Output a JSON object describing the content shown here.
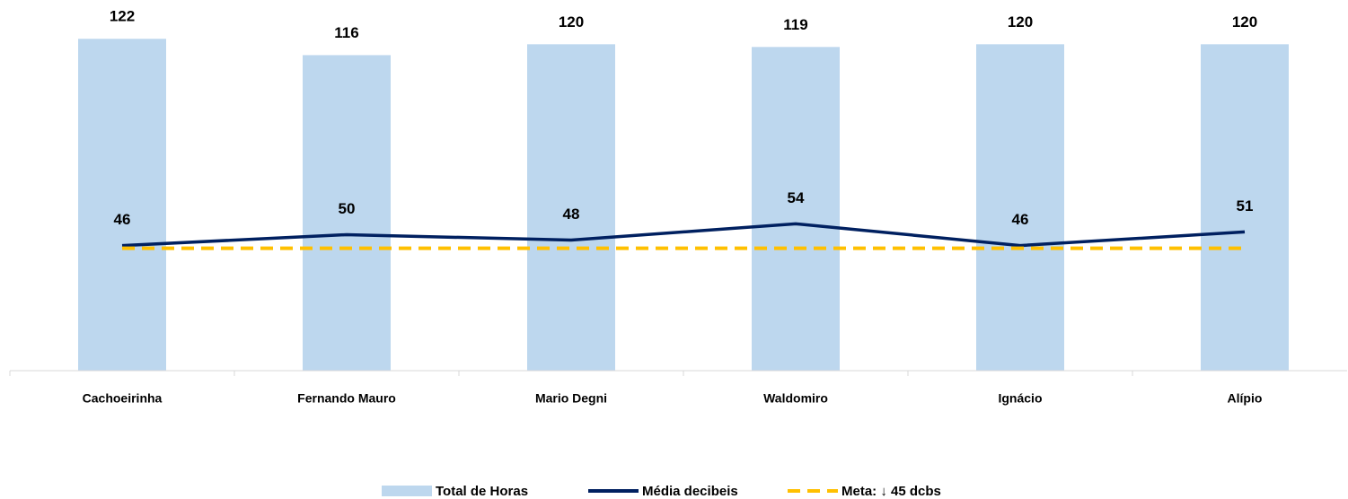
{
  "chart_data": {
    "type": "bar",
    "categories": [
      "Cachoeirinha",
      "Fernando Mauro",
      "Mario Degni",
      "Waldomiro",
      "Ignácio",
      "Alípio"
    ],
    "ylim": [
      0,
      130
    ],
    "series": [
      {
        "name": "Total de Horas",
        "type": "bar",
        "color": "#bdd7ee",
        "values": [
          122,
          116,
          120,
          119,
          120,
          120
        ],
        "labels": true
      },
      {
        "name": "Média decibeis",
        "type": "line",
        "color": "#002060",
        "values": [
          46,
          50,
          48,
          54,
          46,
          51
        ],
        "labels": true
      },
      {
        "name": "Meta: ↓ 45 dcbs",
        "type": "line",
        "dashed": true,
        "color": "#ffc000",
        "values": [
          45,
          45,
          45,
          45,
          45,
          45
        ],
        "labels": false
      }
    ]
  }
}
